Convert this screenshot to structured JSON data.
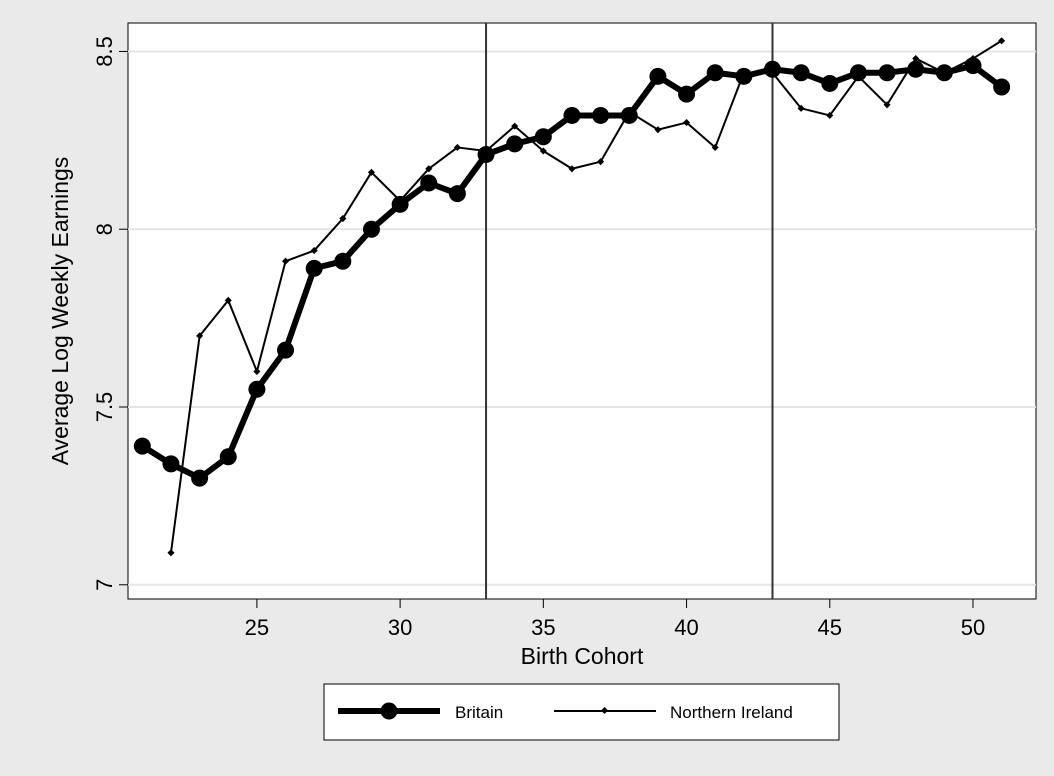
{
  "chart_data": {
    "type": "line",
    "title": "",
    "xlabel": "Birth Cohort",
    "ylabel": "Average Log Weekly Earnings",
    "xlim": [
      20.5,
      52.2
    ],
    "ylim": [
      6.96,
      8.58
    ],
    "xticks": [
      25,
      30,
      35,
      40,
      45,
      50
    ],
    "yticks": [
      7,
      7.5,
      8,
      8.5
    ],
    "xtick_labels": [
      "25",
      "30",
      "35",
      "40",
      "45",
      "50"
    ],
    "ytick_labels": [
      "7",
      "7.5",
      "8",
      "8.5"
    ],
    "grid": "horizontal",
    "vertical_lines": [
      33,
      43
    ],
    "legend_position": "bottom",
    "x": [
      21,
      22,
      23,
      24,
      25,
      26,
      27,
      28,
      29,
      30,
      31,
      32,
      33,
      34,
      35,
      36,
      37,
      38,
      39,
      40,
      41,
      42,
      43,
      44,
      45,
      46,
      47,
      48,
      49,
      50,
      51
    ],
    "series": [
      {
        "name": "Britain",
        "color": "#000000",
        "style": "thick-circle",
        "values": [
          7.39,
          7.34,
          7.3,
          7.36,
          7.55,
          7.66,
          7.89,
          7.91,
          8.0,
          8.07,
          8.13,
          8.1,
          8.21,
          8.24,
          8.26,
          8.32,
          8.32,
          8.32,
          8.43,
          8.38,
          8.44,
          8.43,
          8.45,
          8.44,
          8.41,
          8.44,
          8.44,
          8.45,
          8.44,
          8.46,
          8.4
        ]
      },
      {
        "name": "Northern Ireland",
        "color": "#000000",
        "style": "thin-diamond",
        "values": [
          null,
          7.09,
          7.7,
          7.8,
          7.6,
          7.91,
          7.94,
          8.03,
          8.16,
          8.08,
          8.17,
          8.23,
          8.22,
          8.29,
          8.22,
          8.17,
          8.19,
          8.33,
          8.28,
          8.3,
          8.23,
          8.44,
          8.44,
          8.34,
          8.32,
          8.43,
          8.35,
          8.48,
          8.44,
          8.48,
          8.53
        ]
      }
    ]
  }
}
